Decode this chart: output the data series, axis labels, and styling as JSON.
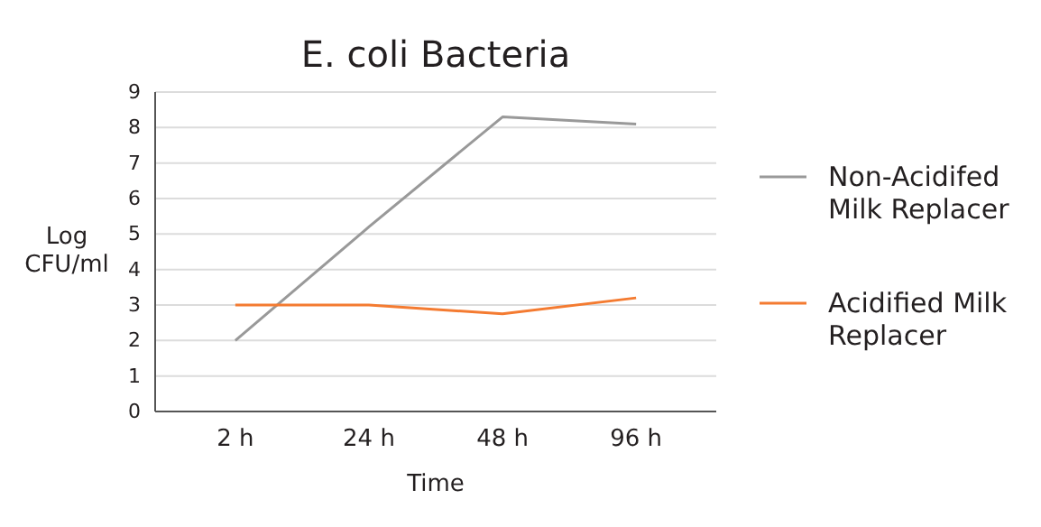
{
  "chart_data": {
    "type": "line",
    "title": "E. coli Bacteria",
    "xlabel": "Time",
    "ylabel": "Log CFU/ml",
    "categories": [
      "2 h",
      "24 h",
      "48 h",
      "96 h"
    ],
    "series": [
      {
        "name": "Non-Acidifed Milk Replacer",
        "color": "#999999",
        "values": [
          2.0,
          5.2,
          8.3,
          8.1
        ]
      },
      {
        "name": "Acidified Milk Replacer",
        "color": "#f47b31",
        "values": [
          3.0,
          3.0,
          2.75,
          3.2
        ]
      }
    ],
    "ylim": [
      0,
      9
    ],
    "yticks": [
      0,
      1,
      2,
      3,
      4,
      5,
      6,
      7,
      8,
      9
    ],
    "grid": "y",
    "legend": "right",
    "marker": "none",
    "line_style": "solid"
  }
}
